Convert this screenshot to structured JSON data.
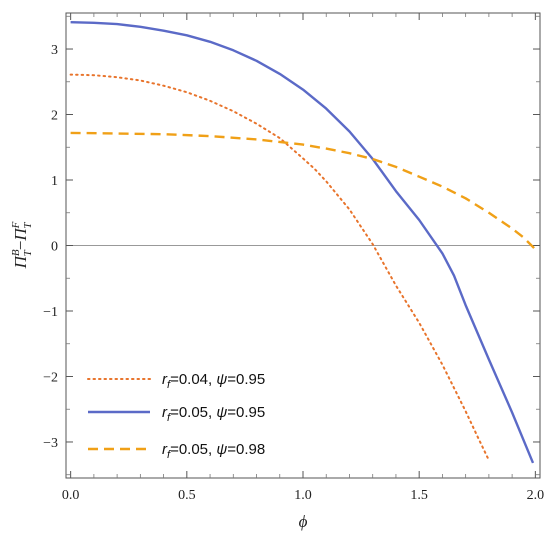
{
  "chart_data": {
    "type": "line",
    "x_axis": {
      "label": "ϕ",
      "lim": [
        -0.02,
        2.02
      ],
      "ticks": [
        0.0,
        0.5,
        1.0,
        1.5,
        2.0
      ],
      "tick_labels": [
        "0.0",
        "0.5",
        "1.0",
        "1.5",
        "2.0"
      ]
    },
    "y_axis": {
      "label": "Π_T^B − Π_T^F",
      "label_parts": {
        "main1": "Π",
        "sub1": "T",
        "sup1": "B",
        "minus": "−",
        "main2": "Π",
        "sub2": "T",
        "sup2": "F"
      },
      "lim": [
        -3.55,
        3.55
      ],
      "ticks": [
        -3,
        -2,
        -1,
        0,
        1,
        2,
        3
      ],
      "tick_labels": [
        "−3",
        "−2",
        "−1",
        "0",
        "1",
        "2",
        "3"
      ]
    },
    "zero_line": true,
    "grid": false,
    "legend_position": "bottom-left",
    "series": [
      {
        "name": "r_f=0.04, ψ=0.95",
        "legend": {
          "var": "r",
          "sub": "f",
          "rest": "=0.04, ",
          "psi": "ψ",
          "rest2": "=0.95"
        },
        "color": "#e8742c",
        "style": "dotted",
        "x": [
          0.0,
          0.1,
          0.2,
          0.3,
          0.4,
          0.5,
          0.6,
          0.7,
          0.8,
          0.9,
          1.0,
          1.05,
          1.1,
          1.2,
          1.3,
          1.4,
          1.5,
          1.6,
          1.7,
          1.75,
          1.8
        ],
        "y": [
          2.61,
          2.6,
          2.57,
          2.52,
          2.44,
          2.34,
          2.21,
          2.05,
          1.86,
          1.64,
          1.33,
          1.17,
          0.98,
          0.55,
          0.02,
          -0.61,
          -1.18,
          -1.82,
          -2.53,
          -2.91,
          -3.28
        ]
      },
      {
        "name": "r_f=0.05, ψ=0.95",
        "legend": {
          "var": "r",
          "sub": "f",
          "rest": "=0.05, ",
          "psi": "ψ",
          "rest2": "=0.95"
        },
        "color": "#5b6ac7",
        "style": "solid",
        "x": [
          0.0,
          0.1,
          0.2,
          0.3,
          0.4,
          0.5,
          0.6,
          0.7,
          0.8,
          0.9,
          1.0,
          1.1,
          1.2,
          1.3,
          1.4,
          1.5,
          1.6,
          1.65,
          1.7,
          1.8,
          1.9,
          1.99
        ],
        "y": [
          3.41,
          3.4,
          3.38,
          3.34,
          3.28,
          3.21,
          3.11,
          2.98,
          2.82,
          2.62,
          2.38,
          2.09,
          1.74,
          1.32,
          0.83,
          0.39,
          -0.12,
          -0.46,
          -0.91,
          -1.74,
          -2.55,
          -3.32
        ]
      },
      {
        "name": "r_f=0.05, ψ=0.98",
        "legend": {
          "var": "r",
          "sub": "f",
          "rest": "=0.05, ",
          "psi": "ψ",
          "rest2": "=0.98"
        },
        "color": "#f0a017",
        "style": "dashed",
        "x": [
          0.0,
          0.2,
          0.4,
          0.6,
          0.8,
          1.0,
          1.1,
          1.2,
          1.3,
          1.4,
          1.5,
          1.6,
          1.7,
          1.8,
          1.9,
          1.95,
          2.0
        ],
        "y": [
          1.72,
          1.71,
          1.7,
          1.67,
          1.62,
          1.54,
          1.48,
          1.41,
          1.32,
          1.2,
          1.05,
          0.9,
          0.72,
          0.5,
          0.26,
          0.12,
          -0.06
        ]
      }
    ]
  }
}
